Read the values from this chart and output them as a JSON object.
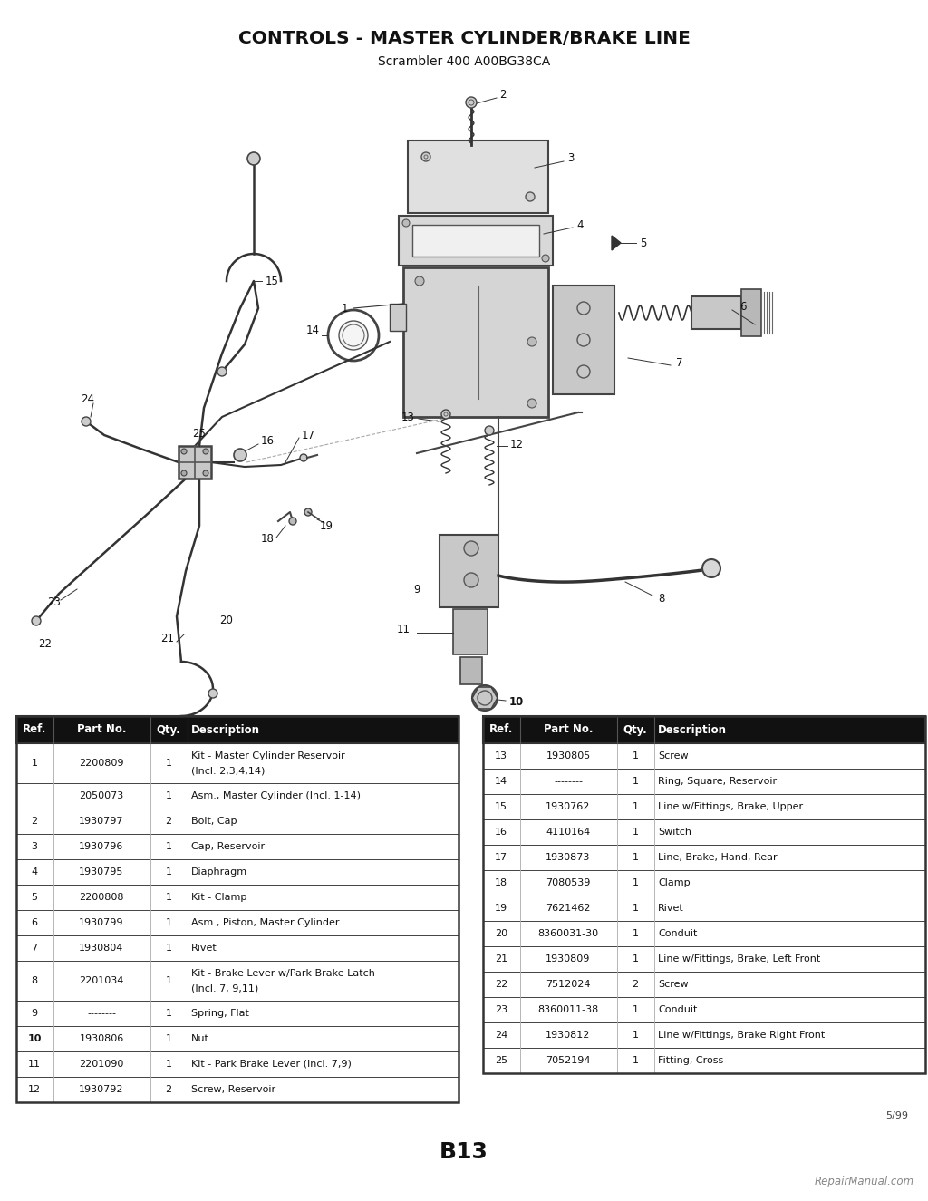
{
  "title": "CONTROLS - MASTER CYLINDER/BRAKE LINE",
  "subtitle": "Scrambler 400 A00BG38CA",
  "page_label": "B13",
  "date_code": "5/99",
  "watermark": "RepairManual.com",
  "bg_color": "#ffffff",
  "table_header_bg": "#111111",
  "table_header_color": "#ffffff",
  "table_border_color": "#333333",
  "table_row_bg": "#ffffff",
  "left_table": {
    "headers": [
      "Ref.",
      "Part No.",
      "Qty.",
      "Description"
    ],
    "rows": [
      [
        "1",
        "2200809",
        "1",
        "Kit - Master Cylinder Reservoir\n(Incl. 2,3,4,14)"
      ],
      [
        "",
        "2050073",
        "1",
        "Asm., Master Cylinder (Incl. 1-14)"
      ],
      [
        "2",
        "1930797",
        "2",
        "Bolt, Cap"
      ],
      [
        "3",
        "1930796",
        "1",
        "Cap, Reservoir"
      ],
      [
        "4",
        "1930795",
        "1",
        "Diaphragm"
      ],
      [
        "5",
        "2200808",
        "1",
        "Kit - Clamp"
      ],
      [
        "6",
        "1930799",
        "1",
        "Asm., Piston, Master Cylinder"
      ],
      [
        "7",
        "1930804",
        "1",
        "Rivet"
      ],
      [
        "8",
        "2201034",
        "1",
        "Kit - Brake Lever w/Park Brake Latch\n(Incl. 7, 9,11)"
      ],
      [
        "9",
        "--------",
        "1",
        "Spring, Flat"
      ],
      [
        "10",
        "1930806",
        "1",
        "Nut"
      ],
      [
        "11",
        "2201090",
        "1",
        "Kit - Park Brake Lever (Incl. 7,9)"
      ],
      [
        "12",
        "1930792",
        "2",
        "Screw, Reservoir"
      ]
    ]
  },
  "right_table": {
    "headers": [
      "Ref.",
      "Part No.",
      "Qty.",
      "Description"
    ],
    "rows": [
      [
        "13",
        "1930805",
        "1",
        "Screw"
      ],
      [
        "14",
        "--------",
        "1",
        "Ring, Square, Reservoir"
      ],
      [
        "15",
        "1930762",
        "1",
        "Line w/Fittings, Brake, Upper"
      ],
      [
        "16",
        "4110164",
        "1",
        "Switch"
      ],
      [
        "17",
        "1930873",
        "1",
        "Line, Brake, Hand, Rear"
      ],
      [
        "18",
        "7080539",
        "1",
        "Clamp"
      ],
      [
        "19",
        "7621462",
        "1",
        "Rivet"
      ],
      [
        "20",
        "8360031-30",
        "1",
        "Conduit"
      ],
      [
        "21",
        "1930809",
        "1",
        "Line w/Fittings, Brake, Left Front"
      ],
      [
        "22",
        "7512024",
        "2",
        "Screw"
      ],
      [
        "23",
        "8360011-38",
        "1",
        "Conduit"
      ],
      [
        "24",
        "1930812",
        "1",
        "Line w/Fittings, Brake Right Front"
      ],
      [
        "25",
        "7052194",
        "1",
        "Fitting, Cross"
      ]
    ]
  }
}
